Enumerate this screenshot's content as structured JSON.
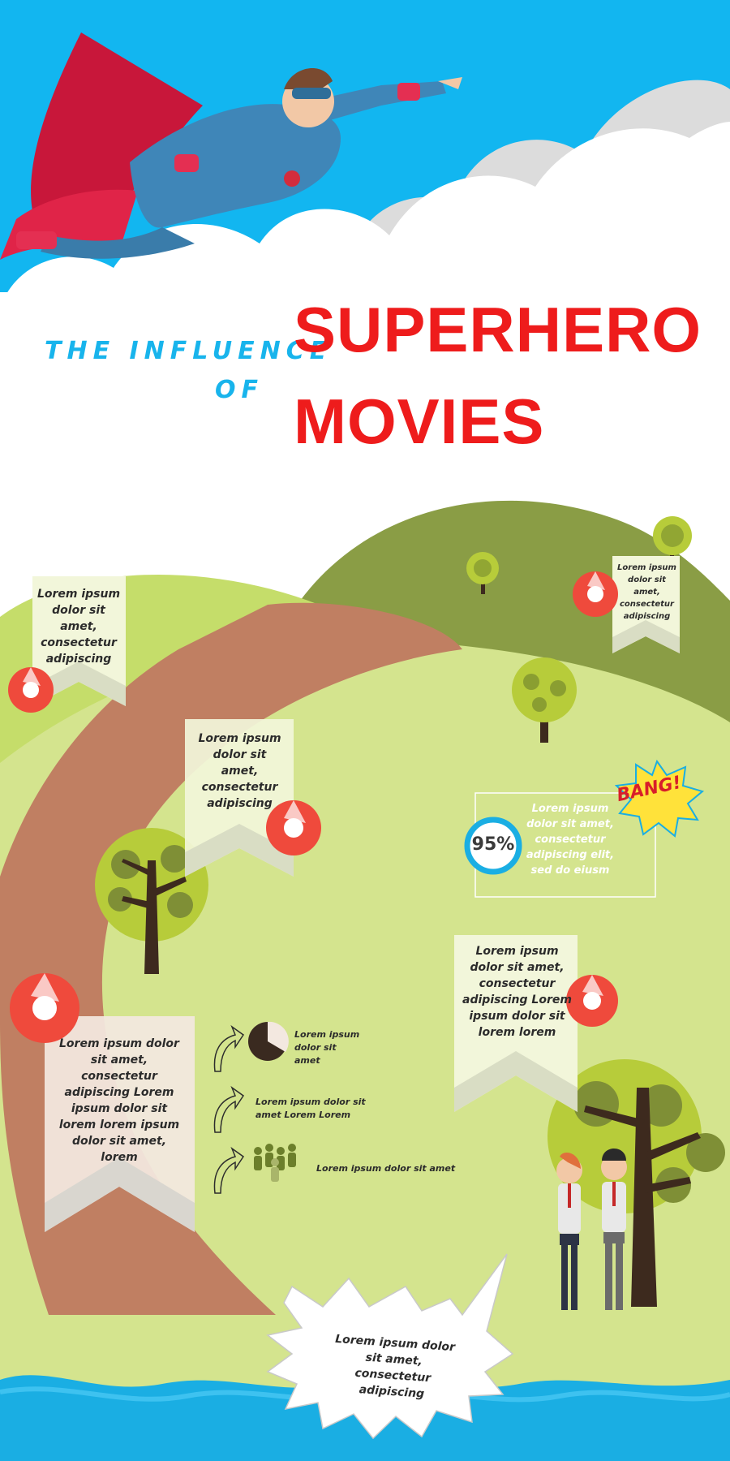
{
  "title": {
    "pre_line1": "THE INFLUENCE",
    "pre_line2": "OF",
    "main_line1": "SUPERHERO",
    "main_line2": "MOVIES"
  },
  "notes": {
    "flag_top_left": "Lorem ipsum dolor sit amet, consectetur adipiscing",
    "flag_top_right": "Lorem ipsum dolor sit amet, consectetur adipiscing",
    "flag_mid_left": "Lorem ipsum dolor sit amet, consectetur adipiscing",
    "stat_box": "Lorem ipsum dolor sit amet, consectetur adipiscing elit, sed do eiusm",
    "flag_right_large": "Lorem ipsum dolor sit amet, consectetur adipiscing Lorem ipsum dolor sit lorem lorem",
    "flag_bottom_left": "Lorem ipsum dolor sit amet, consectetur adipiscing Lorem ipsum dolor sit lorem lorem  ipsum dolor sit amet, lorem",
    "list_item_1": "Lorem ipsum dolor sit amet",
    "list_item_2": "Lorem ipsum dolor sit amet Lorem Lorem",
    "list_item_3": "Lorem ipsum dolor sit amet",
    "burst": "Lorem ipsum dolor sit amet, consectetur adipiscing"
  },
  "stat": {
    "percent_label": "95%",
    "percent_value": 95
  },
  "bang_label": "BANG!",
  "colors": {
    "sky": "#12b6f0",
    "title_red": "#ee1c1c",
    "title_blue": "#18b4ec",
    "hill_dark": "#8a9d45",
    "hill_light": "#c5dd6a",
    "field": "#d4e48e",
    "path": "#c07f62",
    "water": "#1aaee3",
    "shutter_red": "#ef4a3c"
  }
}
